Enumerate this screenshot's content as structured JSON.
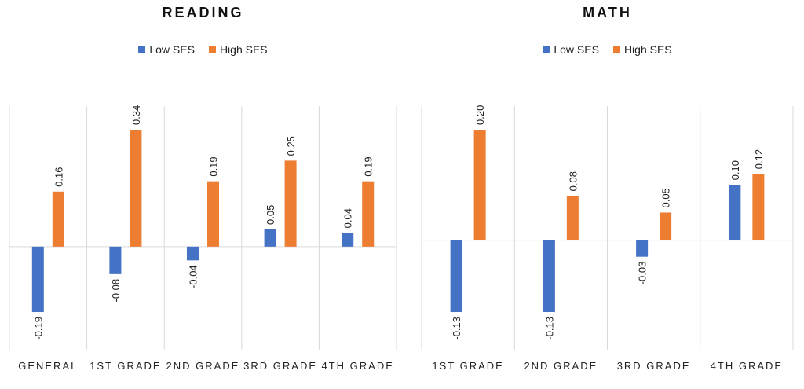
{
  "chart_data": [
    {
      "type": "bar",
      "title": "READING",
      "categories": [
        "GENERAL",
        "1ST GRADE",
        "2ND GRADE",
        "3RD GRADE",
        "4TH GRADE"
      ],
      "series": [
        {
          "name": "Low SES",
          "color": "#4472c4",
          "values": [
            -0.19,
            -0.08,
            -0.04,
            0.05,
            0.04
          ],
          "value_labels": [
            "-0.19",
            "-0.08",
            "-0.04",
            "0.05",
            "0.04"
          ]
        },
        {
          "name": "High SES",
          "color": "#ed7d31",
          "values": [
            0.16,
            0.34,
            0.19,
            0.25,
            0.19
          ],
          "value_labels": [
            "0.16",
            "0.34",
            "0.19",
            "0.25",
            "0.19"
          ]
        }
      ]
    },
    {
      "type": "bar",
      "title": "MATH",
      "categories": [
        "1ST GRADE",
        "2ND GRADE",
        "3RD GRADE",
        "4TH GRADE"
      ],
      "series": [
        {
          "name": "Low SES",
          "color": "#4472c4",
          "values": [
            -0.13,
            -0.13,
            -0.03,
            0.1
          ],
          "value_labels": [
            "-0.13",
            "-0.13",
            "-0.03",
            "0.10"
          ]
        },
        {
          "name": "High SES",
          "color": "#ed7d31",
          "values": [
            0.2,
            0.08,
            0.05,
            0.12
          ],
          "value_labels": [
            "0.20",
            "0.08",
            "0.05",
            "0.12"
          ]
        }
      ]
    }
  ]
}
